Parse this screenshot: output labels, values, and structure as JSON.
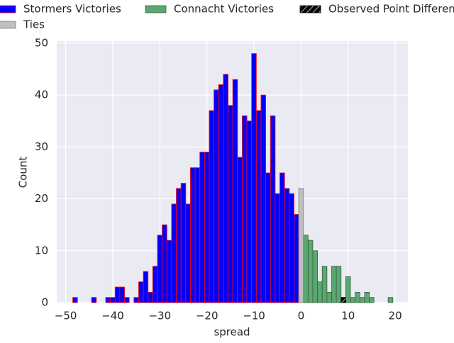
{
  "chart_data": {
    "type": "histogram",
    "xlabel": "spread",
    "ylabel": "Count",
    "xlim": [
      -51.9,
      22.7
    ],
    "ylim": [
      0,
      50.4
    ],
    "xticks": [
      {
        "value": -50,
        "label": "−50"
      },
      {
        "value": -40,
        "label": "−40"
      },
      {
        "value": -30,
        "label": "−30"
      },
      {
        "value": -20,
        "label": "−20"
      },
      {
        "value": -10,
        "label": "−10"
      },
      0,
      10,
      20
    ],
    "yticks": [
      0,
      10,
      20,
      30,
      40,
      50
    ],
    "grid": true,
    "series": [
      {
        "name": "Stormers Victories",
        "color": "#0000ff",
        "edgecolor": "#ff0000",
        "bins": [
          -48.5,
          -47.5,
          -46.5,
          -45.5,
          -44.5,
          -43.5,
          -42.5,
          -41.5,
          -40.5,
          -39.5,
          -38.5,
          -37.5,
          -36.5,
          -35.5,
          -34.5,
          -33.5,
          -32.5,
          -31.5,
          -30.5,
          -29.5,
          -28.5,
          -27.5,
          -26.5,
          -25.5,
          -24.5,
          -23.5,
          -22.5,
          -21.5,
          -20.5,
          -19.5,
          -18.5,
          -17.5,
          -16.5,
          -15.5,
          -14.5,
          -13.5,
          -12.5,
          -11.5,
          -10.5,
          -9.5,
          -8.5,
          -7.5,
          -6.5,
          -5.5,
          -4.5,
          -3.5,
          -2.5,
          -1.5,
          -0.5
        ],
        "values": [
          1,
          0,
          0,
          0,
          1,
          0,
          0,
          1,
          1,
          3,
          3,
          1,
          0,
          1,
          4,
          6,
          2,
          7,
          13,
          15,
          12,
          19,
          22,
          23,
          19,
          26,
          26,
          29,
          29,
          37,
          41,
          42,
          44,
          38,
          43,
          28,
          36,
          35,
          48,
          37,
          40,
          25,
          36,
          21,
          25,
          22,
          21,
          17
        ]
      },
      {
        "name": "Connacht Victories",
        "color": "#5aa870",
        "edgecolor": "#3d5e46",
        "bins": [
          0.5,
          1.5,
          2.5,
          3.5,
          4.5,
          5.5,
          6.5,
          7.5,
          8.5,
          9.5,
          10.5,
          11.5,
          12.5,
          13.5,
          14.5,
          15.5,
          16.5,
          17.5,
          18.5,
          19.5
        ],
        "values": [
          13,
          12,
          10,
          4,
          7,
          2,
          7,
          7,
          0,
          5,
          1,
          2,
          1,
          2,
          1,
          0,
          0,
          0,
          1
        ]
      },
      {
        "name": "Observed Point Difference",
        "color": "#000000",
        "hatch": true,
        "bins": [
          8.5,
          9.5
        ],
        "values": [
          1
        ]
      },
      {
        "name": "Ties",
        "color": "#bfbfbf",
        "edgecolor": "#7f7f7f",
        "bins": [
          -0.5,
          0.5
        ],
        "values": [
          22
        ]
      }
    ]
  }
}
